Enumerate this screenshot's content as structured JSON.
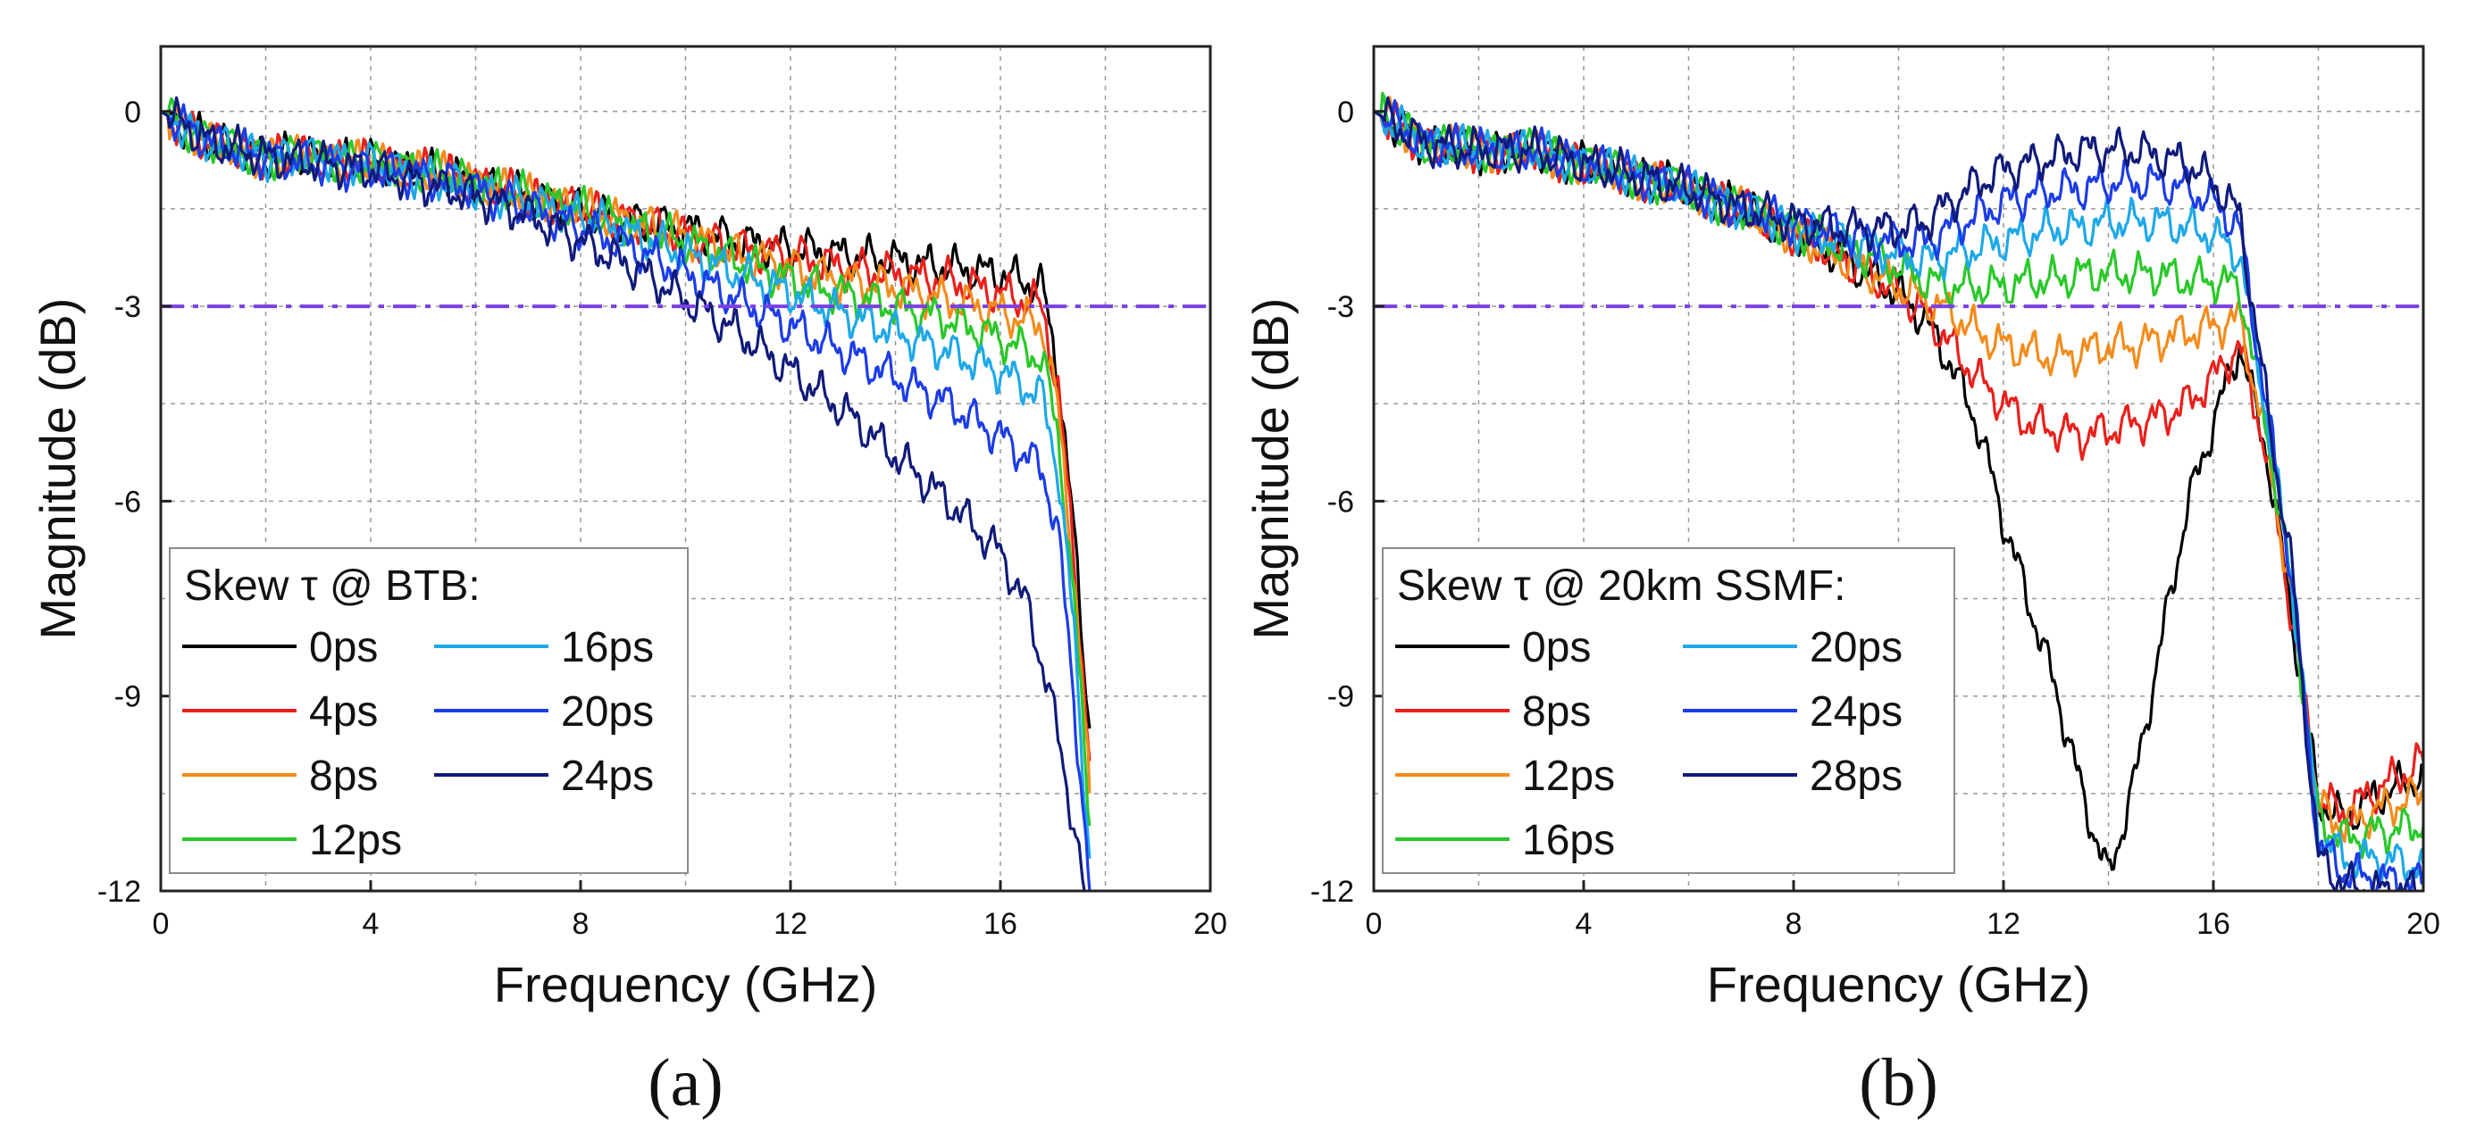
{
  "chart_data": [
    {
      "type": "line",
      "panel_label": "(a)",
      "xlabel": "Frequency (GHz)",
      "ylabel": "Magnitude (dB)",
      "xlim": [
        0,
        20
      ],
      "ylim": [
        -12,
        1
      ],
      "xticks": [
        0,
        4,
        8,
        12,
        16,
        20
      ],
      "yticks": [
        0,
        -3,
        -6,
        -9,
        -12
      ],
      "grid": true,
      "reference_line_y": -3,
      "reference_line_color": "#7b3fe4",
      "legend_title": "Skew τ @ BTB:",
      "legend_position": "bottom-left",
      "series": [
        {
          "name": "0ps",
          "color": "#000000",
          "x": [
            0,
            1,
            2,
            3,
            4,
            5,
            6,
            7,
            8,
            9,
            10,
            11,
            12,
            13,
            14,
            15,
            16,
            16.8,
            17.1,
            17.4,
            17.7
          ],
          "y": [
            0,
            -0.5,
            -0.7,
            -0.7,
            -0.8,
            -0.9,
            -1.1,
            -1.3,
            -1.5,
            -1.7,
            -1.8,
            -2.0,
            -2.1,
            -2.2,
            -2.3,
            -2.4,
            -2.5,
            -2.7,
            -4.0,
            -6.5,
            -9.5
          ]
        },
        {
          "name": "4ps",
          "color": "#e8201b",
          "x": [
            0,
            1,
            2,
            3,
            4,
            5,
            6,
            7,
            8,
            9,
            10,
            11,
            12,
            13,
            14,
            15,
            16,
            16.8,
            17.1,
            17.4,
            17.7
          ],
          "y": [
            0,
            -0.5,
            -0.7,
            -0.7,
            -0.8,
            -0.9,
            -1.1,
            -1.3,
            -1.5,
            -1.7,
            -1.9,
            -2.1,
            -2.2,
            -2.4,
            -2.5,
            -2.6,
            -2.8,
            -3.0,
            -4.3,
            -6.8,
            -10.0
          ]
        },
        {
          "name": "8ps",
          "color": "#f28c1c",
          "x": [
            0,
            1,
            2,
            3,
            4,
            5,
            6,
            7,
            8,
            9,
            10,
            11,
            12,
            13,
            14,
            15,
            16,
            16.8,
            17.1,
            17.4,
            17.7
          ],
          "y": [
            0,
            -0.5,
            -0.7,
            -0.7,
            -0.8,
            -0.9,
            -1.1,
            -1.3,
            -1.5,
            -1.7,
            -1.9,
            -2.2,
            -2.4,
            -2.6,
            -2.7,
            -2.9,
            -3.1,
            -3.3,
            -4.6,
            -7.1,
            -10.5
          ]
        },
        {
          "name": "12ps",
          "color": "#2ac82a",
          "x": [
            0,
            1,
            2,
            3,
            4,
            5,
            6,
            7,
            8,
            9,
            10,
            11,
            12,
            13,
            14,
            15,
            16,
            16.8,
            17.1,
            17.4,
            17.7
          ],
          "y": [
            0,
            -0.5,
            -0.7,
            -0.7,
            -0.8,
            -0.9,
            -1.1,
            -1.3,
            -1.5,
            -1.8,
            -2.0,
            -2.3,
            -2.6,
            -2.8,
            -3.0,
            -3.2,
            -3.5,
            -3.8,
            -5.0,
            -7.5,
            -11.0
          ]
        },
        {
          "name": "16ps",
          "color": "#1ea8e8",
          "x": [
            0,
            1,
            2,
            3,
            4,
            5,
            6,
            7,
            8,
            9,
            10,
            11,
            12,
            13,
            14,
            15,
            16,
            16.8,
            17.1,
            17.4,
            17.7
          ],
          "y": [
            0,
            -0.5,
            -0.7,
            -0.7,
            -0.8,
            -1.0,
            -1.2,
            -1.4,
            -1.6,
            -1.9,
            -2.2,
            -2.5,
            -2.8,
            -3.1,
            -3.4,
            -3.7,
            -4.0,
            -4.4,
            -5.5,
            -8.0,
            -11.5
          ]
        },
        {
          "name": "20ps",
          "color": "#1c3ce6",
          "x": [
            0,
            1,
            2,
            3,
            4,
            5,
            6,
            7,
            8,
            9,
            10,
            11,
            12,
            13,
            14,
            15,
            16,
            16.8,
            17.1,
            17.4,
            17.7
          ],
          "y": [
            0,
            -0.5,
            -0.7,
            -0.8,
            -0.9,
            -1.0,
            -1.2,
            -1.5,
            -1.8,
            -2.1,
            -2.5,
            -2.9,
            -3.3,
            -3.7,
            -4.1,
            -4.5,
            -5.0,
            -5.5,
            -6.5,
            -9.0,
            -12.0
          ]
        },
        {
          "name": "24ps",
          "color": "#101a7a",
          "x": [
            0,
            1,
            2,
            3,
            4,
            5,
            6,
            7,
            8,
            9,
            10,
            11,
            12,
            13,
            14,
            15,
            16,
            16.5,
            16.9,
            17.3,
            17.6
          ],
          "y": [
            0,
            -0.5,
            -0.7,
            -0.8,
            -0.9,
            -1.1,
            -1.3,
            -1.6,
            -2.0,
            -2.4,
            -2.9,
            -3.4,
            -4.0,
            -4.6,
            -5.3,
            -6.0,
            -6.8,
            -7.6,
            -8.8,
            -10.5,
            -12.0
          ]
        }
      ]
    },
    {
      "type": "line",
      "panel_label": "(b)",
      "xlabel": "Frequency (GHz)",
      "ylabel": "Magnitude (dB)",
      "xlim": [
        0,
        20
      ],
      "ylim": [
        -12,
        1
      ],
      "xticks": [
        0,
        4,
        8,
        12,
        16,
        20
      ],
      "yticks": [
        0,
        -3,
        -6,
        -9,
        -12
      ],
      "grid": true,
      "reference_line_y": -3,
      "reference_line_color": "#7b3fe4",
      "legend_title": "Skew τ @ 20km SSMF:",
      "legend_position": "bottom-left",
      "series": [
        {
          "name": "0ps",
          "color": "#000000",
          "x": [
            0,
            1,
            2,
            3,
            4,
            5,
            6,
            7,
            8,
            9,
            10,
            10.5,
            11,
            11.5,
            12,
            12.5,
            13,
            13.5,
            14,
            14.5,
            15,
            15.5,
            16,
            16.5,
            17,
            17.5,
            18,
            18.5,
            19,
            20
          ],
          "y": [
            0,
            -0.5,
            -0.6,
            -0.6,
            -0.8,
            -1.0,
            -1.2,
            -1.5,
            -1.9,
            -2.3,
            -2.8,
            -3.2,
            -3.9,
            -4.8,
            -6.3,
            -7.6,
            -8.9,
            -10.5,
            -11.8,
            -10.3,
            -8.2,
            -6.1,
            -4.8,
            -3.6,
            -5.2,
            -7.8,
            -10.6,
            -10.9,
            -10.6,
            -10.2
          ]
        },
        {
          "name": "8ps",
          "color": "#e8201b",
          "x": [
            0,
            1,
            2,
            3,
            4,
            5,
            6,
            7,
            8,
            9,
            10,
            10.5,
            11,
            11.5,
            12,
            12.5,
            13,
            13.5,
            14,
            14.5,
            15,
            15.5,
            16,
            16.5,
            17,
            17.5,
            18,
            18.5,
            19,
            20
          ],
          "y": [
            0,
            -0.5,
            -0.6,
            -0.6,
            -0.8,
            -1.0,
            -1.2,
            -1.5,
            -1.9,
            -2.3,
            -2.8,
            -3.1,
            -3.6,
            -4.1,
            -4.5,
            -4.8,
            -4.9,
            -5.0,
            -4.9,
            -4.8,
            -4.7,
            -4.5,
            -4.1,
            -3.6,
            -5.2,
            -7.8,
            -10.6,
            -10.8,
            -10.5,
            -10.0
          ]
        },
        {
          "name": "12ps",
          "color": "#f28c1c",
          "x": [
            0,
            1,
            2,
            3,
            4,
            5,
            6,
            7,
            8,
            9,
            10,
            10.5,
            11,
            11.5,
            12,
            12.5,
            13,
            13.5,
            14,
            14.5,
            15,
            15.5,
            16,
            16.5,
            17,
            17.5,
            18,
            18.5,
            19,
            20
          ],
          "y": [
            0,
            -0.5,
            -0.6,
            -0.6,
            -0.8,
            -1.0,
            -1.2,
            -1.5,
            -1.9,
            -2.3,
            -2.7,
            -2.9,
            -3.1,
            -3.4,
            -3.6,
            -3.7,
            -3.8,
            -3.7,
            -3.6,
            -3.6,
            -3.5,
            -3.4,
            -3.3,
            -3.2,
            -5.0,
            -7.6,
            -10.7,
            -11.0,
            -10.8,
            -10.5
          ]
        },
        {
          "name": "16ps",
          "color": "#2ac82a",
          "x": [
            0,
            1,
            2,
            3,
            4,
            5,
            6,
            7,
            8,
            9,
            10,
            10.5,
            11,
            11.5,
            12,
            12.5,
            13,
            13.5,
            14,
            14.5,
            15,
            15.5,
            16,
            16.5,
            17,
            17.5,
            18,
            18.5,
            19,
            20
          ],
          "y": [
            0,
            -0.5,
            -0.6,
            -0.6,
            -0.8,
            -1.0,
            -1.2,
            -1.5,
            -1.8,
            -2.1,
            -2.4,
            -2.6,
            -2.7,
            -2.7,
            -2.7,
            -2.6,
            -2.6,
            -2.5,
            -2.5,
            -2.5,
            -2.5,
            -2.6,
            -2.6,
            -2.7,
            -4.8,
            -7.4,
            -10.9,
            -11.2,
            -11.1,
            -11.0
          ]
        },
        {
          "name": "20ps",
          "color": "#1ea8e8",
          "x": [
            0,
            1,
            2,
            3,
            4,
            5,
            6,
            7,
            8,
            9,
            10,
            10.5,
            11,
            11.5,
            12,
            12.5,
            13,
            13.5,
            14,
            14.5,
            15,
            15.5,
            16,
            16.5,
            17,
            17.5,
            18,
            18.5,
            19,
            20
          ],
          "y": [
            0,
            -0.5,
            -0.6,
            -0.6,
            -0.8,
            -1.0,
            -1.2,
            -1.5,
            -1.8,
            -2.0,
            -2.2,
            -2.3,
            -2.2,
            -2.1,
            -2.0,
            -1.9,
            -1.8,
            -1.8,
            -1.7,
            -1.7,
            -1.7,
            -1.8,
            -1.9,
            -2.2,
            -4.6,
            -7.3,
            -11.1,
            -11.5,
            -11.5,
            -11.6
          ]
        },
        {
          "name": "24ps",
          "color": "#1c3ce6",
          "x": [
            0,
            1,
            2,
            3,
            4,
            5,
            6,
            7,
            8,
            9,
            10,
            10.5,
            11,
            11.5,
            12,
            12.5,
            13,
            13.5,
            14,
            14.5,
            15,
            15.5,
            16,
            16.5,
            17,
            17.5,
            18,
            18.5,
            19,
            20
          ],
          "y": [
            0,
            -0.5,
            -0.6,
            -0.6,
            -0.8,
            -1.0,
            -1.2,
            -1.5,
            -1.7,
            -1.9,
            -2.0,
            -2.0,
            -1.8,
            -1.6,
            -1.4,
            -1.3,
            -1.2,
            -1.2,
            -1.1,
            -1.1,
            -1.1,
            -1.2,
            -1.4,
            -1.8,
            -4.5,
            -7.2,
            -11.3,
            -11.7,
            -11.8,
            -11.9
          ]
        },
        {
          "name": "28ps",
          "color": "#101a7a",
          "x": [
            0,
            1,
            2,
            3,
            4,
            5,
            6,
            7,
            8,
            9,
            10,
            10.5,
            11,
            11.5,
            12,
            12.5,
            13,
            13.5,
            14,
            14.5,
            15,
            15.5,
            16,
            16.5,
            17,
            17.5,
            18,
            18.5,
            19,
            20
          ],
          "y": [
            0,
            -0.5,
            -0.6,
            -0.6,
            -0.8,
            -1.0,
            -1.2,
            -1.5,
            -1.7,
            -1.8,
            -1.8,
            -1.7,
            -1.4,
            -1.1,
            -0.9,
            -0.8,
            -0.7,
            -0.6,
            -0.6,
            -0.6,
            -0.7,
            -0.8,
            -1.1,
            -1.6,
            -4.4,
            -7.1,
            -11.5,
            -11.9,
            -12.0,
            -12.0
          ]
        }
      ]
    }
  ]
}
